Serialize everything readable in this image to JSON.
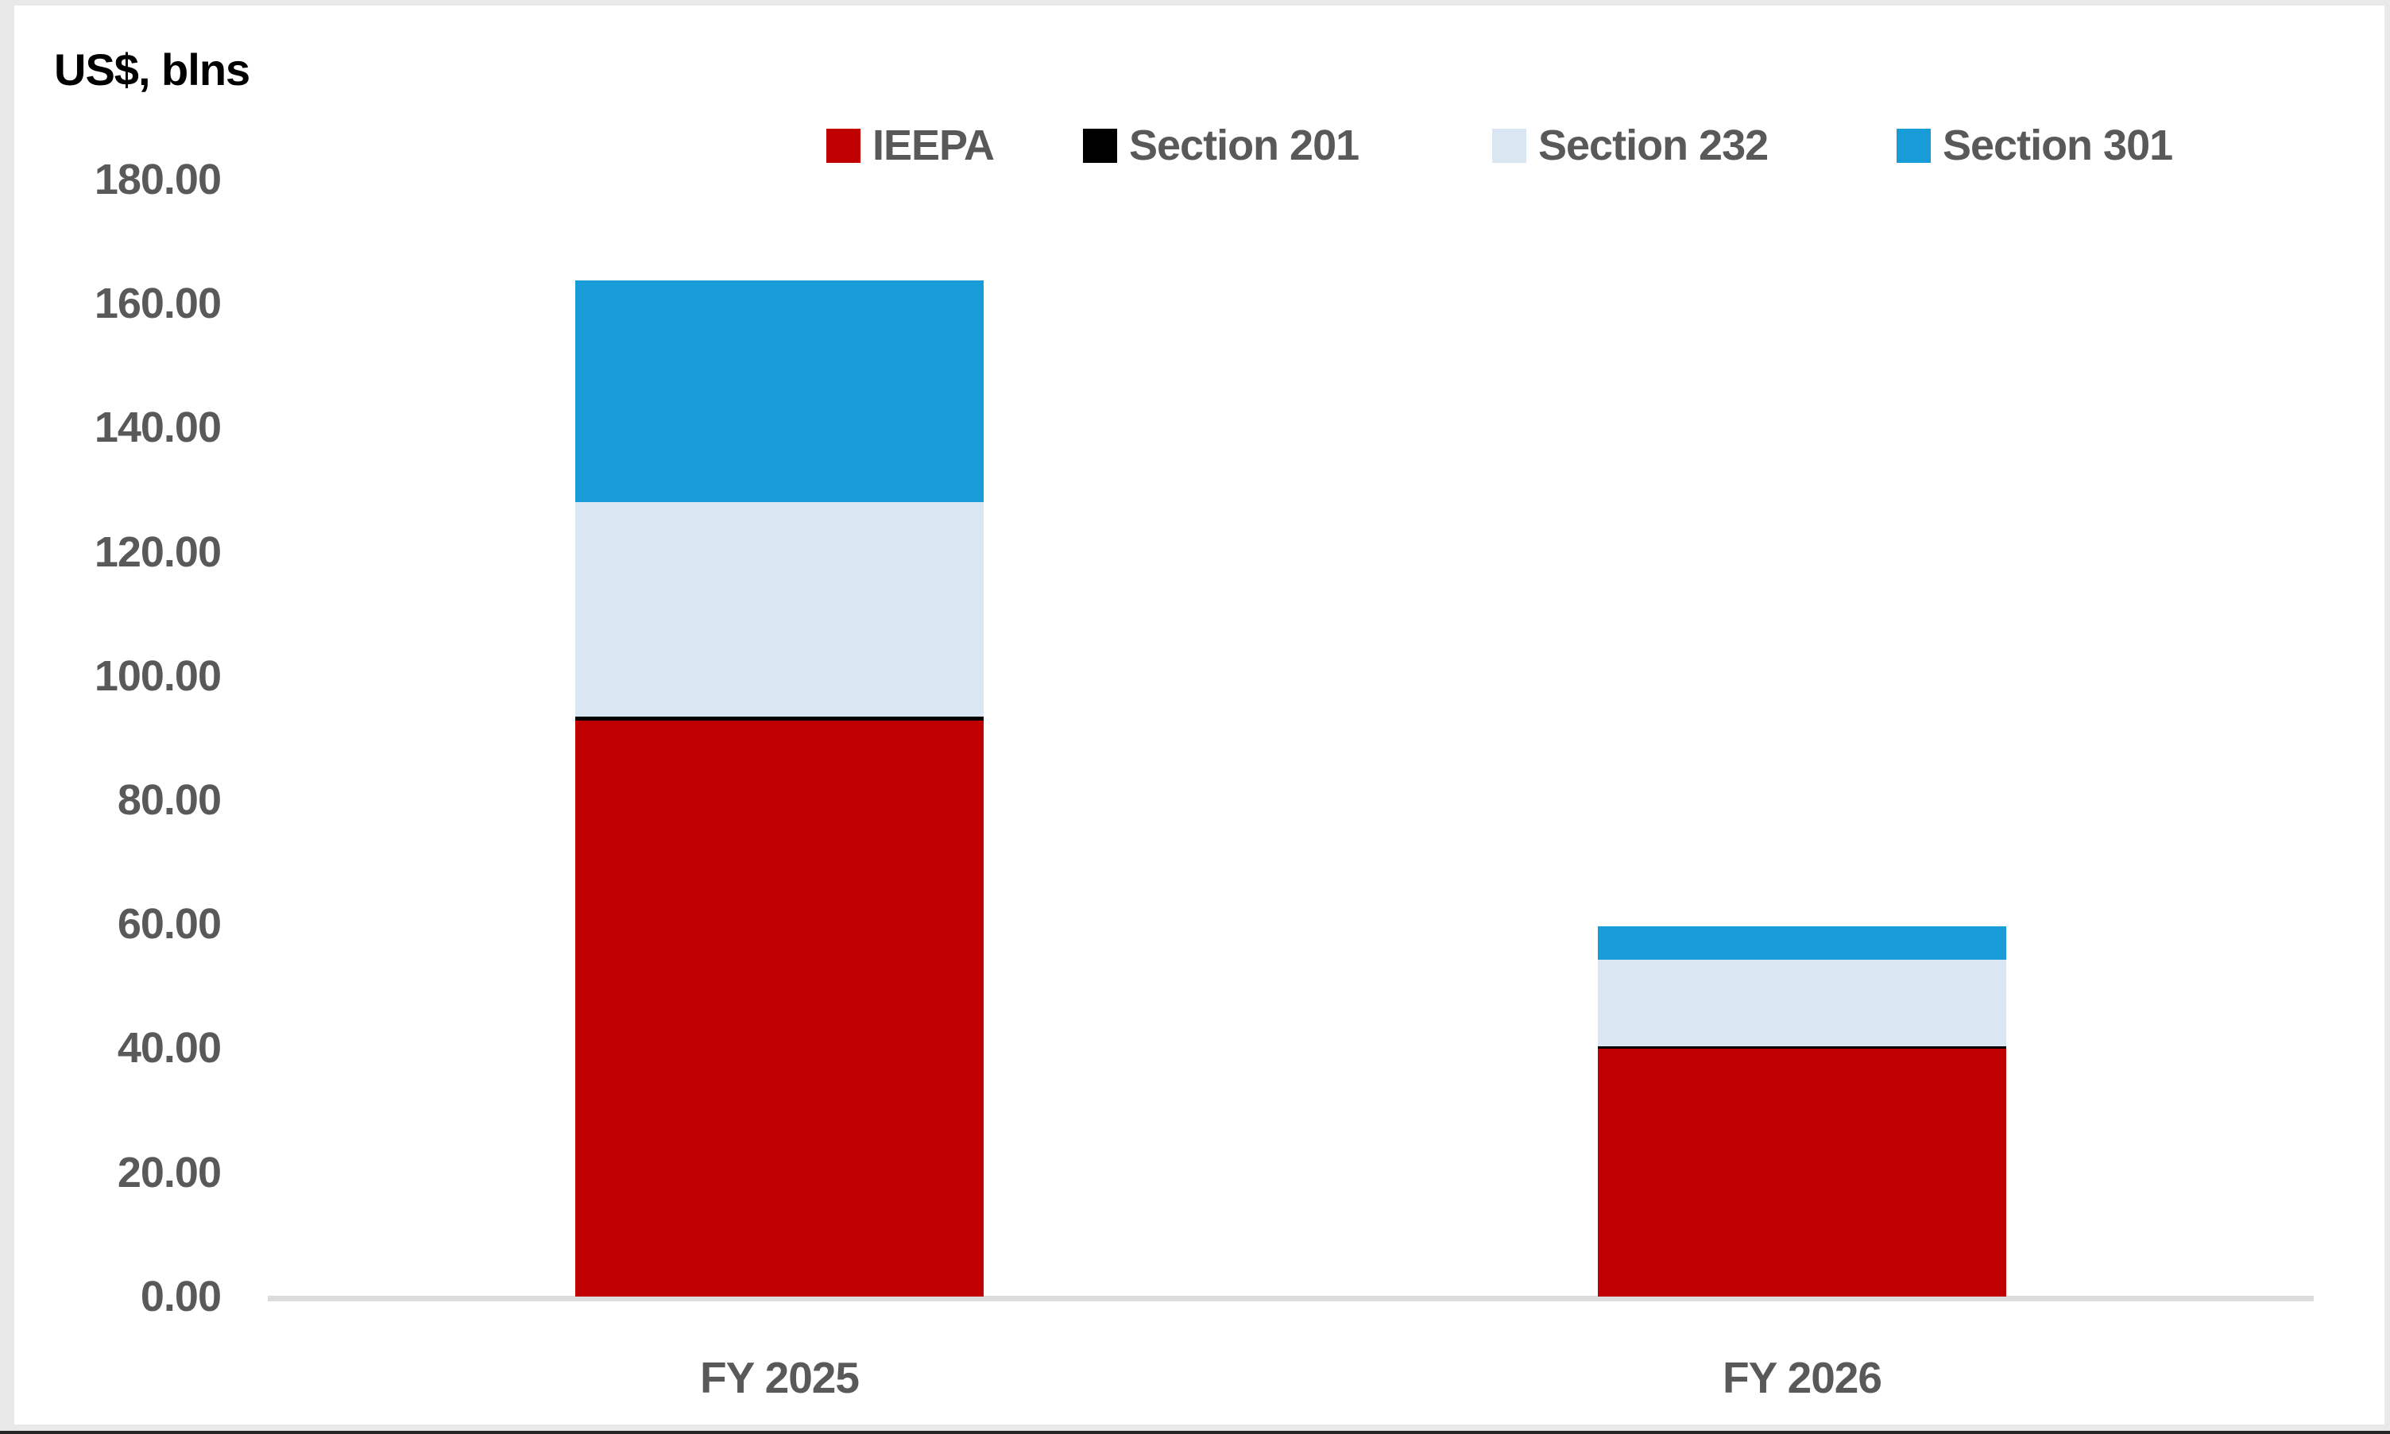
{
  "title": "US$, blns",
  "chart_data": {
    "type": "bar",
    "stacked": true,
    "title": "US$, blns",
    "categories": [
      "FY 2025",
      "FY 2026"
    ],
    "series": [
      {
        "name": "IEEPA",
        "color": "#c00000",
        "values": [
          92.8,
          39.9
        ]
      },
      {
        "name": "Section 201",
        "color": "#000000",
        "values": [
          0.64,
          0.38
        ]
      },
      {
        "name": "Section 232",
        "color": "#dae7f3",
        "values": [
          34.6,
          14.0
        ]
      },
      {
        "name": "Section 301",
        "color": "#189cd8",
        "values": [
          35.7,
          5.44
        ]
      }
    ],
    "totals": [
      163.74,
      59.72
    ],
    "xlabel": "",
    "ylabel": "US$, blns",
    "ylim": [
      0,
      180
    ],
    "ytick_step": 20,
    "yticks": [
      "180.00",
      "160.00",
      "140.00",
      "120.00",
      "100.00",
      "80.00",
      "60.00",
      "40.00",
      "20.00",
      "0.00"
    ],
    "grid": false,
    "legend_position": "top-center"
  },
  "colors": {
    "axis_text": "#595959",
    "axis_line": "#dcdcdc",
    "frame": "#e9e9e9",
    "background": "#ffffff"
  }
}
